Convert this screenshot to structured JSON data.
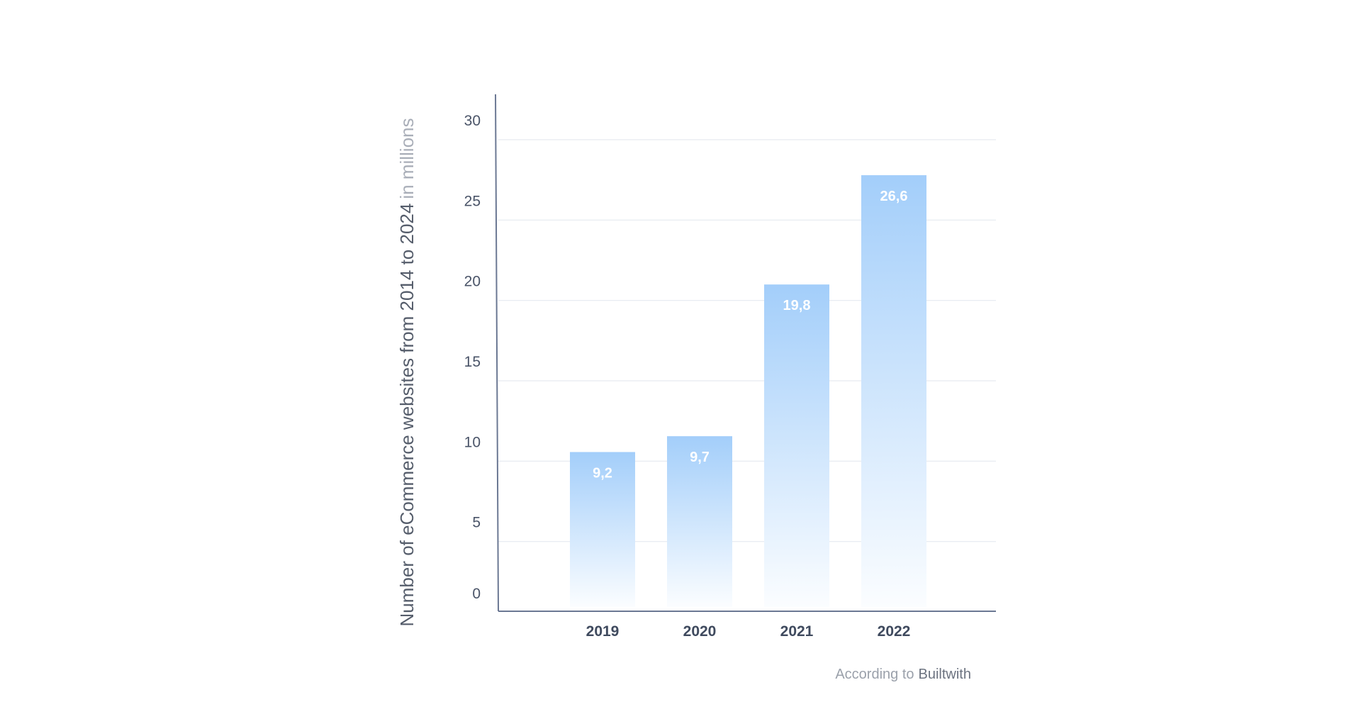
{
  "chart_data": {
    "type": "bar",
    "categories": [
      "2019",
      "2020",
      "2021",
      "2022"
    ],
    "series": [
      {
        "values": [
          9.2,
          9.7,
          19.8,
          26.6
        ],
        "labels": [
          "9,2",
          "9,7",
          "19,8",
          "26,6"
        ]
      }
    ],
    "ylabel": "Number of eCommerce websites from 2014 to 2024",
    "ylabel_unit": "in millions",
    "ylim": [
      0,
      30
    ],
    "yticks": [
      "0",
      "5",
      "10",
      "15",
      "20",
      "25",
      "30"
    ],
    "grid": true,
    "source_prefix": "According to",
    "source_name": "Builtwith"
  },
  "colors": {
    "bar_top": "#a3cefa",
    "bar_bottom": "#fbfdff",
    "axis": "#6b7893",
    "grid": "#e6e9f0"
  }
}
